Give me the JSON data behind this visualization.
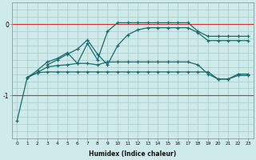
{
  "xlabel": "Humidex (Indice chaleur)",
  "bg_color": "#ceeaea",
  "grid_color": "#b0d0d0",
  "line_color": "#1a6b6b",
  "xlim": [
    -0.5,
    23.5
  ],
  "ylim": [
    -1.6,
    0.3
  ],
  "yticks": [
    -1,
    0
  ],
  "xticks": [
    0,
    1,
    2,
    3,
    4,
    5,
    6,
    7,
    8,
    9,
    10,
    11,
    12,
    13,
    14,
    15,
    16,
    17,
    18,
    19,
    20,
    21,
    22,
    23
  ],
  "red_lines": [
    0,
    -1
  ],
  "series": [
    {
      "x": [
        0,
        1,
        2,
        3,
        4,
        5,
        6,
        7,
        8,
        9,
        10,
        11,
        12,
        13,
        14,
        15,
        16,
        17,
        18,
        19,
        20,
        21,
        22,
        23
      ],
      "y": [
        -1.35,
        -0.75,
        -0.68,
        -0.67,
        -0.67,
        -0.67,
        -0.67,
        -0.67,
        -0.67,
        -0.67,
        -0.67,
        -0.67,
        -0.67,
        -0.67,
        -0.67,
        -0.67,
        -0.67,
        -0.67,
        -0.67,
        -0.67,
        -0.77,
        -0.77,
        -0.72,
        -0.72
      ]
    },
    {
      "x": [
        1,
        2,
        3,
        4,
        5,
        6,
        7,
        8,
        9,
        10,
        11,
        12,
        13,
        14,
        15,
        16,
        17,
        18,
        19,
        20,
        21,
        22,
        23
      ],
      "y": [
        -0.75,
        -0.68,
        -0.6,
        -0.58,
        -0.57,
        -0.55,
        -0.55,
        -0.57,
        -0.53,
        -0.53,
        -0.53,
        -0.53,
        -0.53,
        -0.53,
        -0.53,
        -0.53,
        -0.53,
        -0.57,
        -0.7,
        -0.77,
        -0.77,
        -0.7,
        -0.7
      ]
    },
    {
      "x": [
        1,
        2,
        3,
        4,
        5,
        6,
        7,
        8,
        9,
        10,
        11,
        12,
        13,
        14,
        15,
        16,
        17,
        18,
        19,
        20,
        21,
        22,
        23
      ],
      "y": [
        -0.75,
        -0.65,
        -0.53,
        -0.48,
        -0.4,
        -0.55,
        -0.27,
        -0.5,
        -0.1,
        0.02,
        0.02,
        0.02,
        0.02,
        0.02,
        0.02,
        0.02,
        0.02,
        -0.1,
        -0.17,
        -0.17,
        -0.17,
        -0.17,
        -0.17
      ]
    },
    {
      "x": [
        3,
        4,
        5,
        6,
        7,
        8,
        9,
        10,
        11,
        12,
        13,
        14,
        15,
        16,
        17,
        18,
        19,
        20,
        21,
        22,
        23
      ],
      "y": [
        -0.57,
        -0.5,
        -0.42,
        -0.35,
        -0.22,
        -0.42,
        -0.57,
        -0.3,
        -0.15,
        -0.08,
        -0.05,
        -0.05,
        -0.05,
        -0.05,
        -0.05,
        -0.12,
        -0.23,
        -0.23,
        -0.23,
        -0.23,
        -0.23
      ]
    }
  ]
}
